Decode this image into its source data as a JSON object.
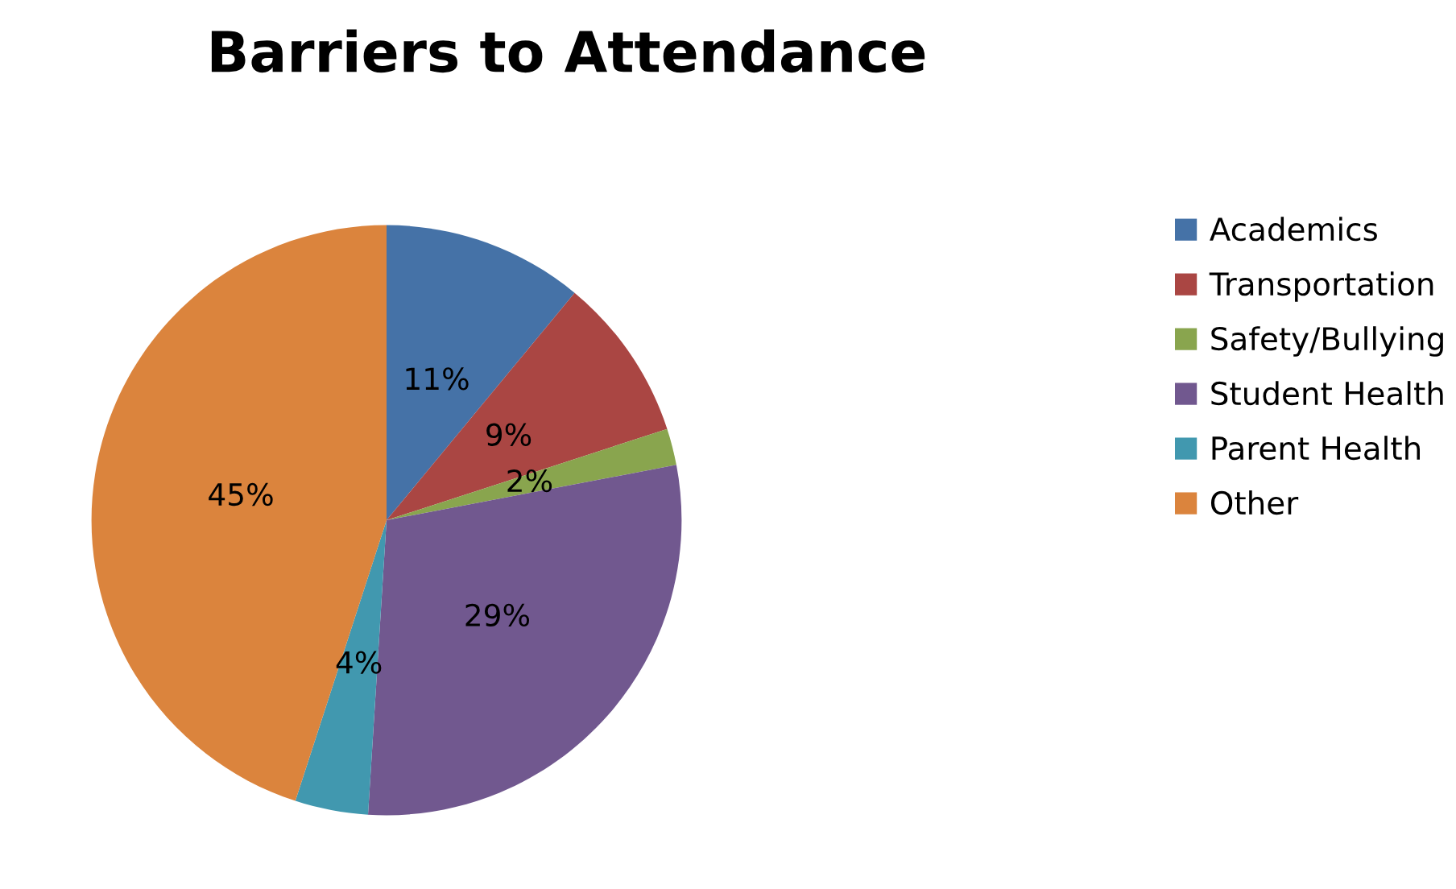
{
  "chart_data": {
    "type": "pie",
    "title": "Barriers to Attendance",
    "categories": [
      "Academics",
      "Transportation",
      "Safety/Bullying",
      "Student Health",
      "Parent Health",
      "Other"
    ],
    "values": [
      11,
      9,
      2,
      29,
      4,
      45
    ],
    "value_labels": [
      "11%",
      "9%",
      "2%",
      "29%",
      "4%",
      "45%"
    ],
    "colors": [
      "#4572a7",
      "#aa4643",
      "#89a54e",
      "#71588f",
      "#4198af",
      "#db843d"
    ],
    "legend": "right"
  }
}
